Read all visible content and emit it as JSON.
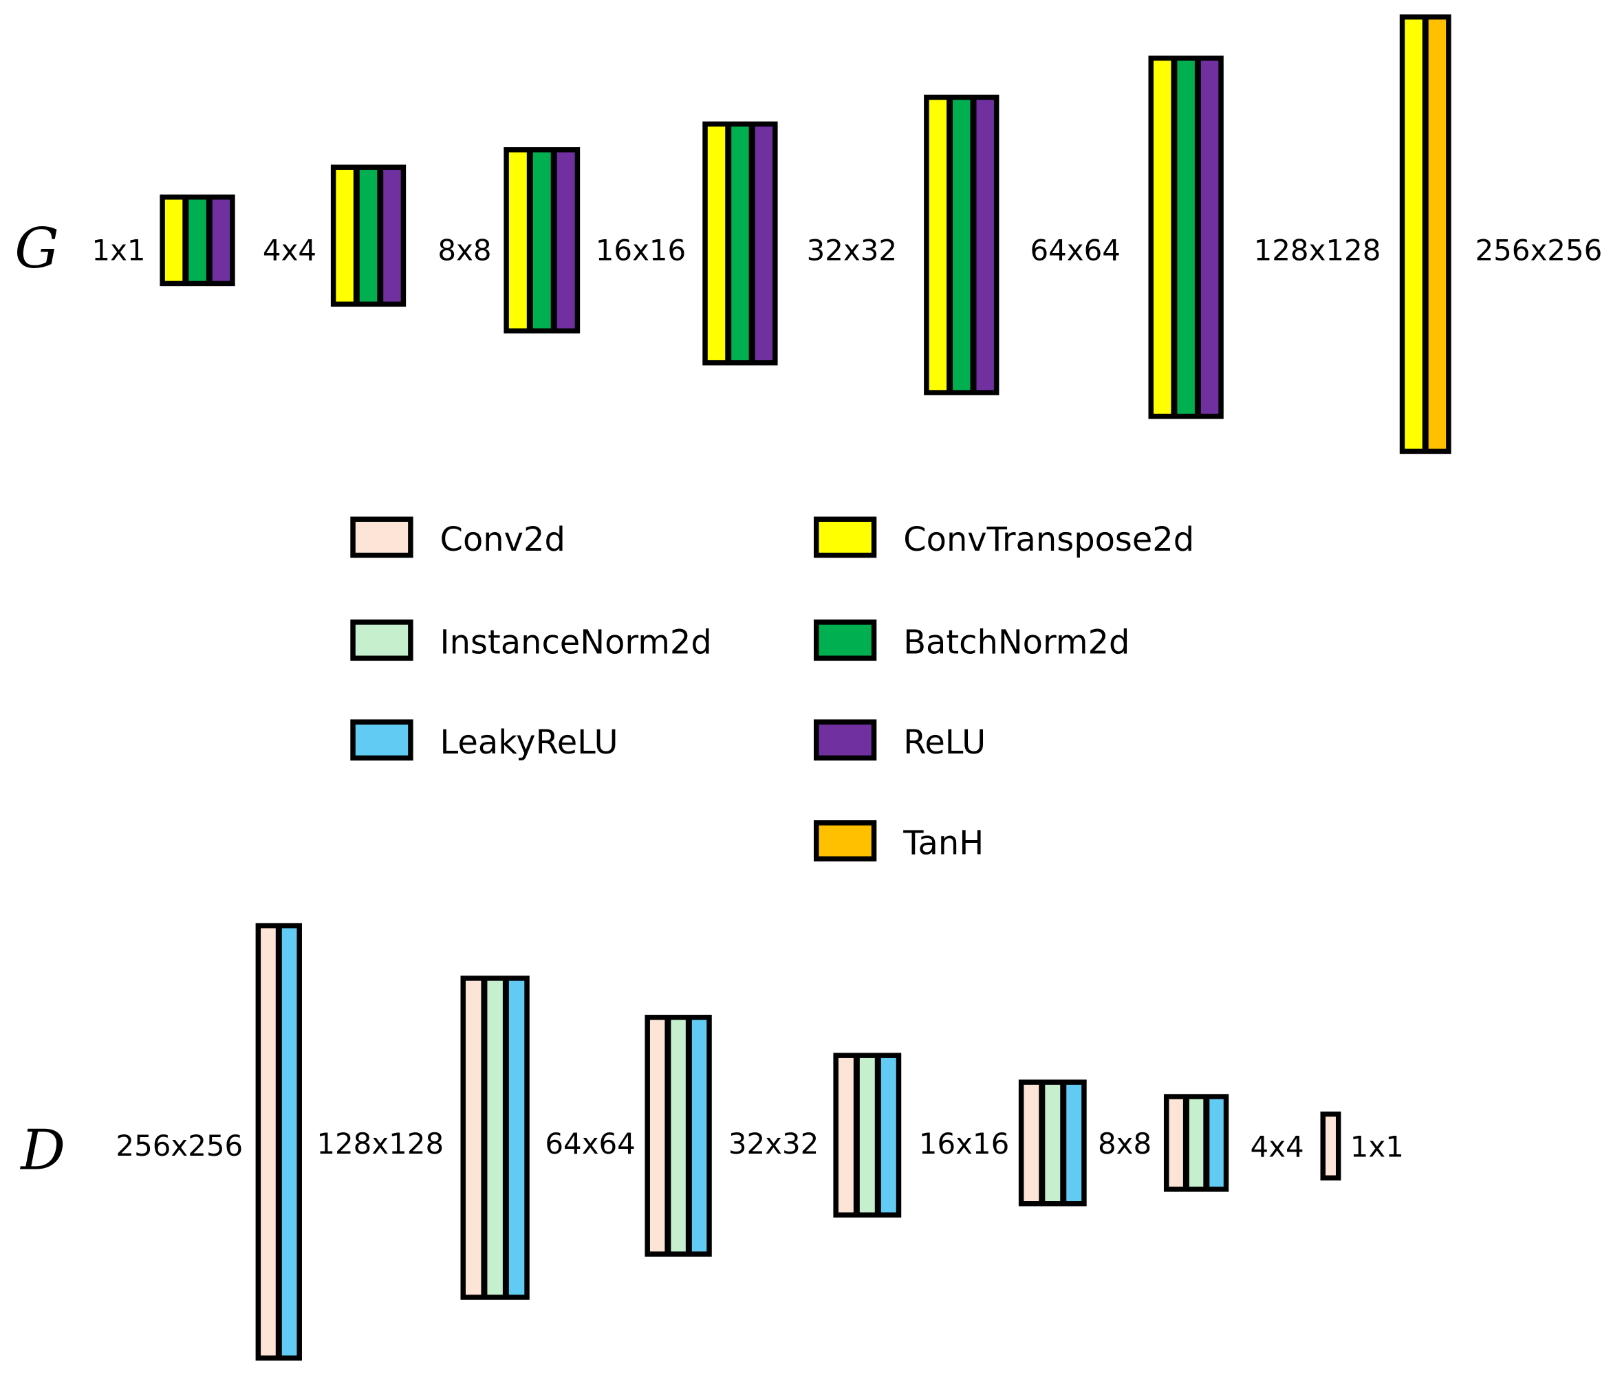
{
  "colors": {
    "Conv2d": "#FCE4D6",
    "InstanceNorm2d": "#C6EFCE",
    "LeakyReLU": "#61CBF4",
    "ConvTranspose2d": "#FFFF00",
    "BatchNorm2d": "#00B050",
    "ReLU": "#7030A0",
    "TanH": "#FFC000",
    "border": "#000000"
  },
  "generator": {
    "name": "G",
    "sizes": [
      "1x1",
      "4x4",
      "8x8",
      "16x16",
      "32x32",
      "64x64",
      "128x128",
      "256x256"
    ],
    "blocks": [
      [
        "ConvTranspose2d",
        "BatchNorm2d",
        "ReLU"
      ],
      [
        "ConvTranspose2d",
        "BatchNorm2d",
        "ReLU"
      ],
      [
        "ConvTranspose2d",
        "BatchNorm2d",
        "ReLU"
      ],
      [
        "ConvTranspose2d",
        "BatchNorm2d",
        "ReLU"
      ],
      [
        "ConvTranspose2d",
        "BatchNorm2d",
        "ReLU"
      ],
      [
        "ConvTranspose2d",
        "BatchNorm2d",
        "ReLU"
      ],
      [
        "ConvTranspose2d",
        "TanH"
      ]
    ]
  },
  "discriminator": {
    "name": "D",
    "sizes": [
      "256x256",
      "128x128",
      "64x64",
      "32x32",
      "16x16",
      "8x8",
      "4x4",
      "1x1"
    ],
    "blocks": [
      [
        "Conv2d",
        "LeakyReLU"
      ],
      [
        "Conv2d",
        "InstanceNorm2d",
        "LeakyReLU"
      ],
      [
        "Conv2d",
        "InstanceNorm2d",
        "LeakyReLU"
      ],
      [
        "Conv2d",
        "InstanceNorm2d",
        "LeakyReLU"
      ],
      [
        "Conv2d",
        "InstanceNorm2d",
        "LeakyReLU"
      ],
      [
        "Conv2d",
        "InstanceNorm2d",
        "LeakyReLU"
      ],
      [
        "Conv2d"
      ]
    ]
  },
  "legend": [
    {
      "label": "Conv2d",
      "key": "Conv2d"
    },
    {
      "label": "InstanceNorm2d",
      "key": "InstanceNorm2d"
    },
    {
      "label": "LeakyReLU",
      "key": "LeakyReLU"
    },
    {
      "label": "ConvTranspose2d",
      "key": "ConvTranspose2d"
    },
    {
      "label": "BatchNorm2d",
      "key": "BatchNorm2d"
    },
    {
      "label": "ReLU",
      "key": "ReLU"
    },
    {
      "label": "TanH",
      "key": "TanH"
    }
  ]
}
